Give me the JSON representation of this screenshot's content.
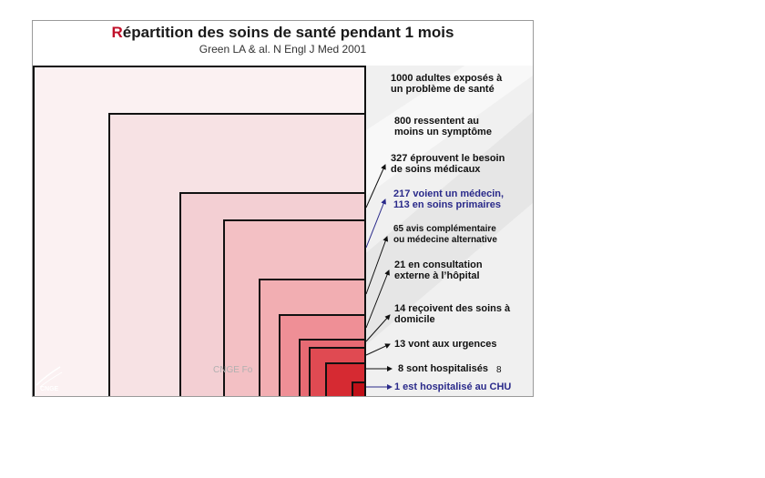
{
  "slide": {
    "title_initial": "R",
    "title_rest": "épartition des soins de santé pendant 1 mois",
    "subtitle": "Green LA & al. N Engl J Med 2001",
    "watermark": "CNGE Fo",
    "logo_text": "CNGE",
    "page_number": "8"
  },
  "labels": [
    {
      "line1": "1000 adultes exposés à",
      "line2": "un problème de santé"
    },
    {
      "line1": "800 ressentent au",
      "line2": "moins un symptôme"
    },
    {
      "line1": "327 éprouvent le besoin",
      "line2": "de soins médicaux"
    },
    {
      "line1": "217 voient un médecin,",
      "line2": "113 en soins primaires"
    },
    {
      "line1": "65 avis complémentaire",
      "line2": "ou médecine alternative"
    },
    {
      "line1": "21 en consultation",
      "line2": "externe à l’hôpital"
    },
    {
      "line1": "14 reçoivent des soins à",
      "line2": "domicile"
    },
    {
      "line1": "13 vont aux urgences",
      "line2": ""
    },
    {
      "line1": "8 sont hospitalisés",
      "line2": ""
    },
    {
      "line1": "1 est hospitalisé au CHU",
      "line2": ""
    }
  ],
  "colors": {
    "accent_red": "#c0102a",
    "band": "#a0264a",
    "blue_text": "#2a2a8a"
  }
}
